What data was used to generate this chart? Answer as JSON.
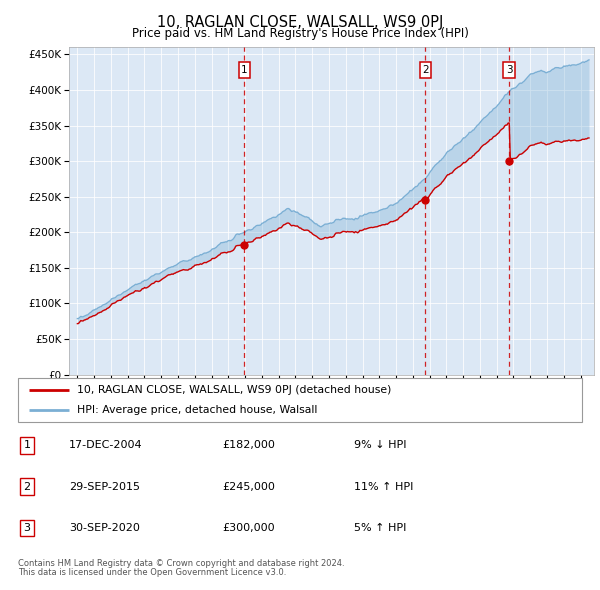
{
  "title": "10, RAGLAN CLOSE, WALSALL, WS9 0PJ",
  "subtitle": "Price paid vs. HM Land Registry's House Price Index (HPI)",
  "legend_line1": "10, RAGLAN CLOSE, WALSALL, WS9 0PJ (detached house)",
  "legend_line2": "HPI: Average price, detached house, Walsall",
  "footnote1": "Contains HM Land Registry data © Crown copyright and database right 2024.",
  "footnote2": "This data is licensed under the Open Government Licence v3.0.",
  "transactions": [
    {
      "num": 1,
      "date": "17-DEC-2004",
      "price": "£182,000",
      "pct": "9% ↓ HPI",
      "year": 2004.96,
      "value": 182000
    },
    {
      "num": 2,
      "date": "29-SEP-2015",
      "price": "£245,000",
      "pct": "11% ↑ HPI",
      "year": 2015.75,
      "value": 245000
    },
    {
      "num": 3,
      "date": "30-SEP-2020",
      "price": "£300,000",
      "pct": "5% ↑ HPI",
      "year": 2020.75,
      "value": 300000
    }
  ],
  "hpi_color": "#7bafd4",
  "price_color": "#cc0000",
  "vline_color": "#cc0000",
  "bg_color": "#dce8f5",
  "ylim": [
    0,
    460000
  ],
  "yticks": [
    0,
    50000,
    100000,
    150000,
    200000,
    250000,
    300000,
    350000,
    400000,
    450000
  ],
  "xmin": 1994.5,
  "xmax": 2025.8
}
